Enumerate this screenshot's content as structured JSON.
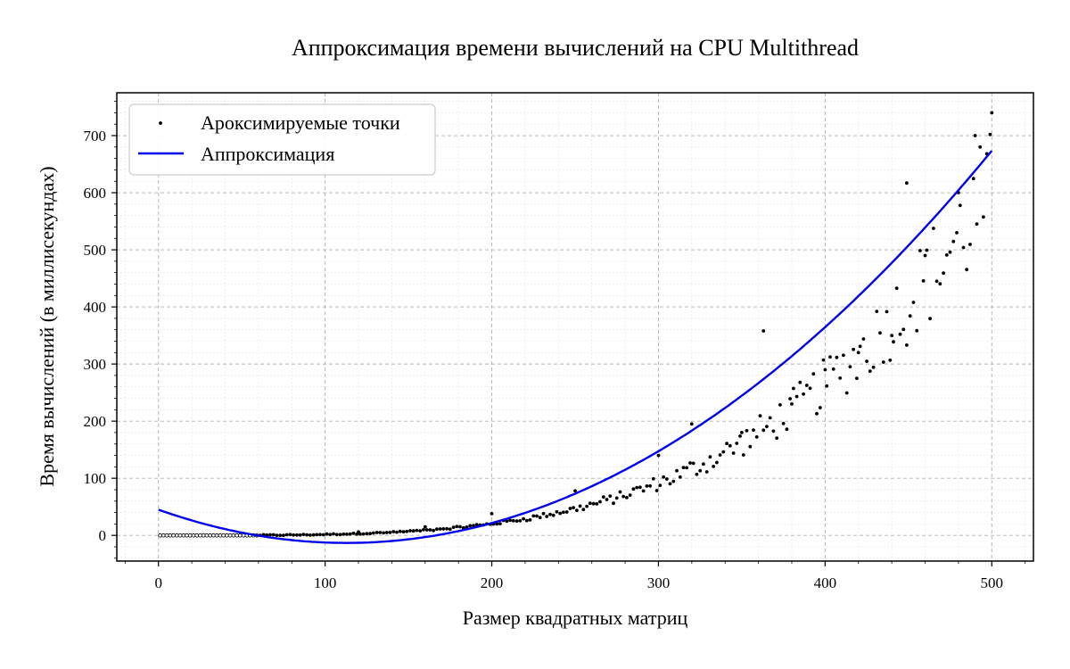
{
  "chart_data": {
    "type": "scatter",
    "title": "Аппроксимация времени вычислений на CPU Multithread",
    "xlabel": "Размер квадратных матриц",
    "ylabel": "Время вычислений (в миллисекундах)",
    "xlim": [
      -25,
      525
    ],
    "ylim": [
      -45,
      775
    ],
    "x_ticks": [
      0,
      100,
      200,
      300,
      400,
      500
    ],
    "y_ticks": [
      0,
      100,
      200,
      300,
      400,
      500,
      600,
      700
    ],
    "grid": true,
    "minor_grid": true,
    "legend_position": "upper left",
    "colors": {
      "points": "#000000",
      "fit": "#0000ee"
    },
    "series": [
      {
        "name": "Ароксимируемые точки",
        "kind": "scatter",
        "model": "power",
        "coef": 6.25e-08,
        "exponent": 3.7,
        "x_range": [
          1,
          500
        ],
        "step": 2,
        "points": [
          {
            "x": 120,
            "y": 6
          },
          {
            "x": 160,
            "y": 15
          },
          {
            "x": 200,
            "y": 38
          },
          {
            "x": 250,
            "y": 78
          },
          {
            "x": 300,
            "y": 140
          },
          {
            "x": 320,
            "y": 195
          },
          {
            "x": 350,
            "y": 180
          },
          {
            "x": 363,
            "y": 358
          },
          {
            "x": 380,
            "y": 230
          },
          {
            "x": 400,
            "y": 290
          },
          {
            "x": 420,
            "y": 320
          },
          {
            "x": 440,
            "y": 350
          },
          {
            "x": 449,
            "y": 617
          },
          {
            "x": 460,
            "y": 490
          },
          {
            "x": 480,
            "y": 600
          },
          {
            "x": 490,
            "y": 700
          },
          {
            "x": 500,
            "y": 740
          }
        ]
      },
      {
        "name": "Аппроксимация",
        "kind": "line",
        "model": "quadratic",
        "coefficients": [
          0.00458,
          -1.033,
          45.0
        ],
        "x_range": [
          0,
          500
        ]
      }
    ]
  }
}
